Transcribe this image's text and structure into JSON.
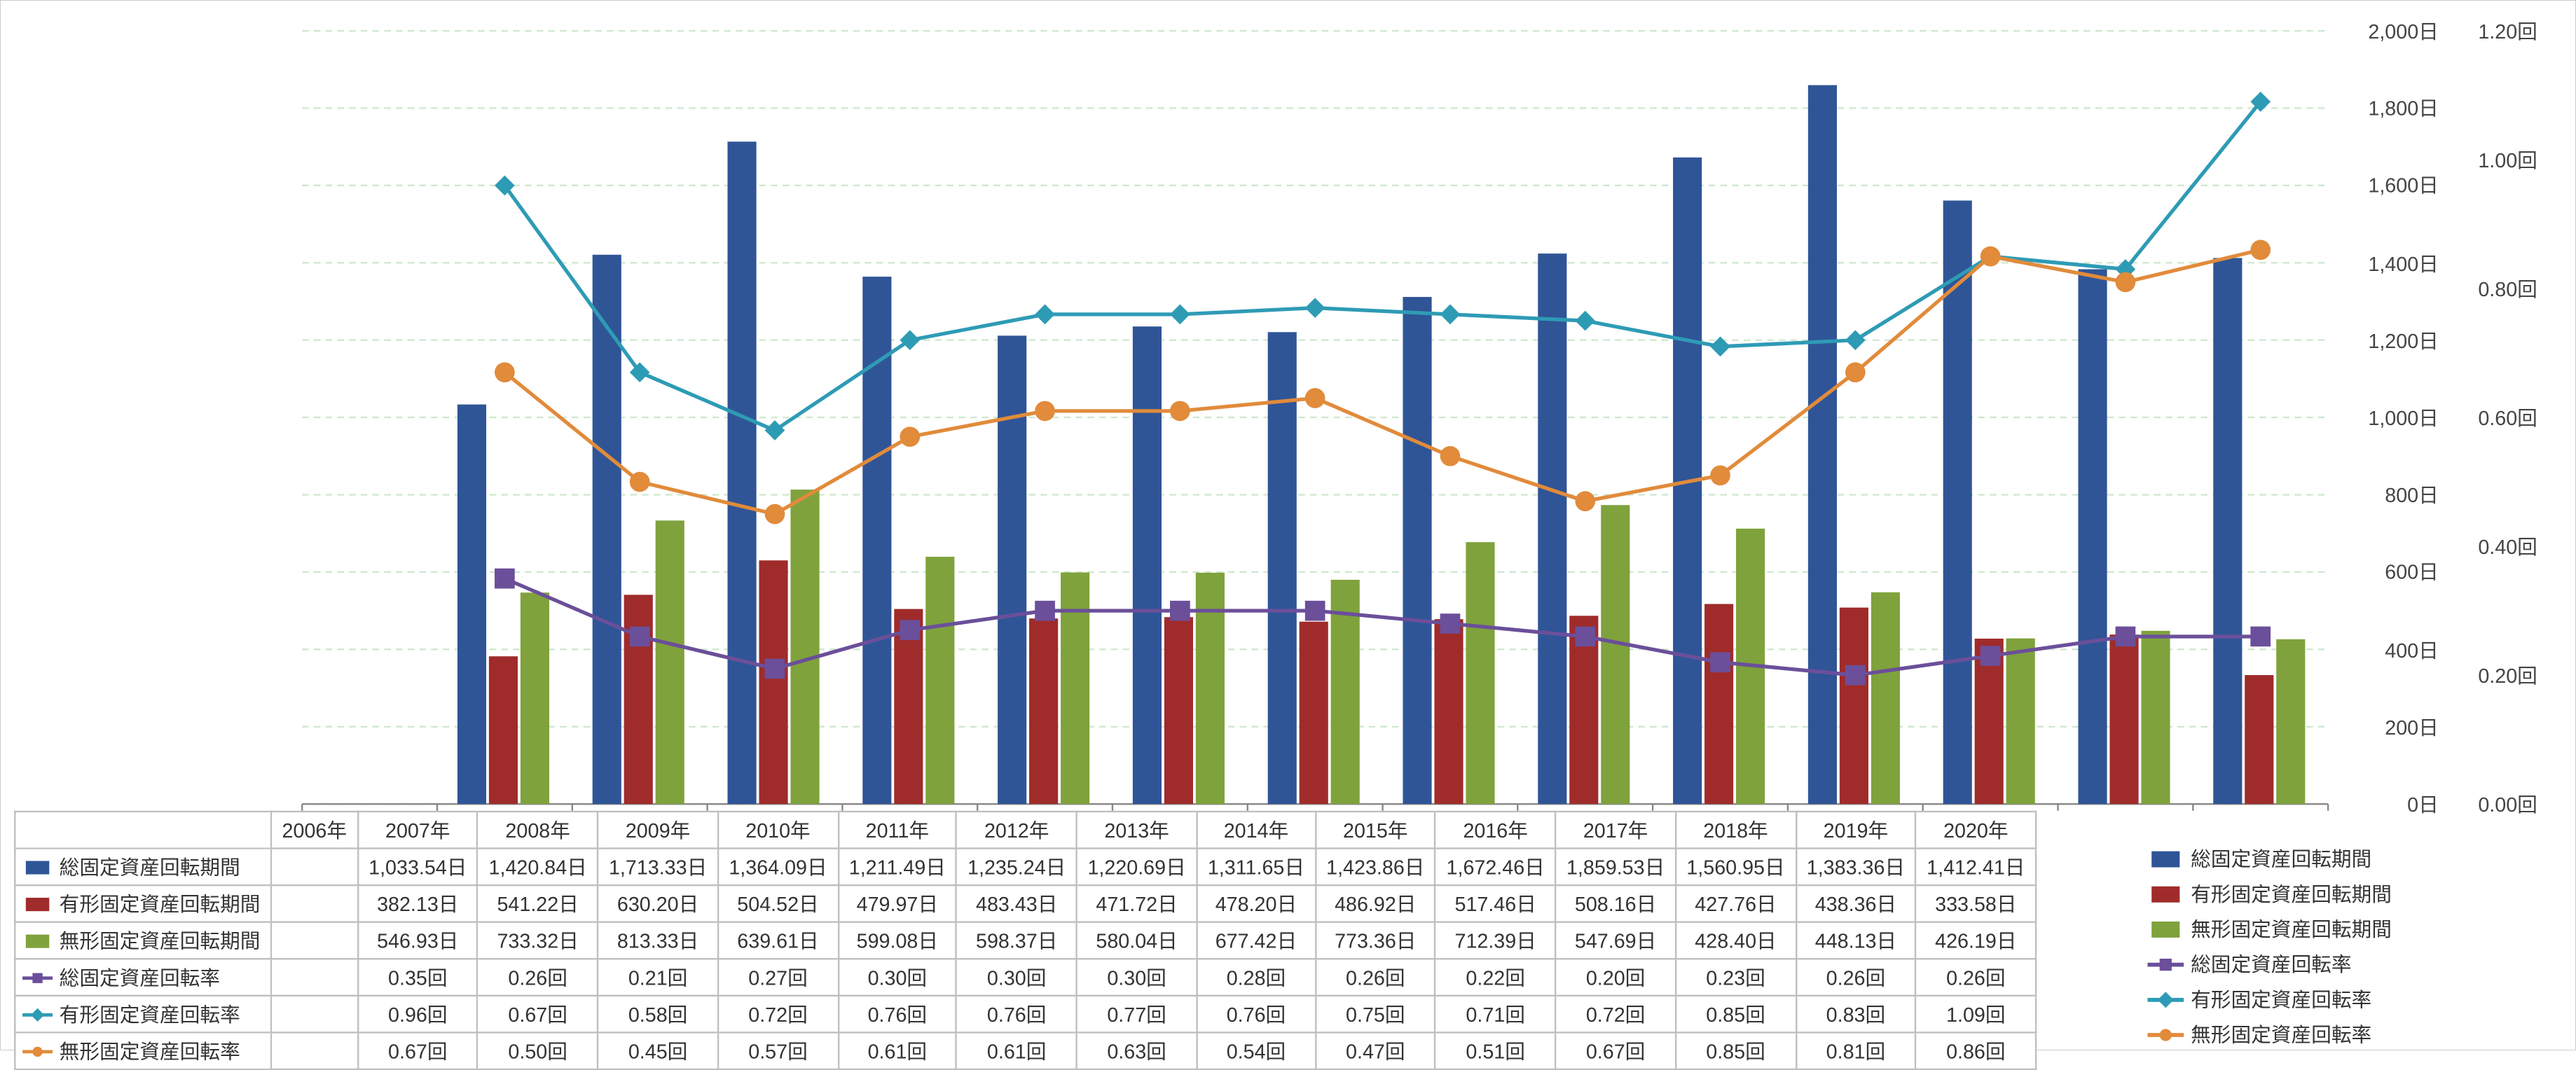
{
  "years": [
    "2006年",
    "2007年",
    "2008年",
    "2009年",
    "2010年",
    "2011年",
    "2012年",
    "2013年",
    "2014年",
    "2015年",
    "2016年",
    "2017年",
    "2018年",
    "2019年",
    "2020年"
  ],
  "series_bar": [
    {
      "key": "b1",
      "name": "総固定資産回転期間",
      "color": "#2f5597",
      "values": [
        null,
        1033.54,
        1420.84,
        1713.33,
        1364.09,
        1211.49,
        1235.24,
        1220.69,
        1311.65,
        1423.86,
        1672.46,
        1859.53,
        1560.95,
        1383.36,
        1412.41
      ],
      "unit": "日"
    },
    {
      "key": "b2",
      "name": "有形固定資産回転期間",
      "color": "#a02b2b",
      "values": [
        null,
        382.13,
        541.22,
        630.2,
        504.52,
        479.97,
        483.43,
        471.72,
        478.2,
        486.92,
        517.46,
        508.16,
        427.76,
        438.36,
        333.58
      ],
      "unit": "日"
    },
    {
      "key": "b3",
      "name": "無形固定資産回転期間",
      "color": "#7fa23c",
      "values": [
        null,
        546.93,
        733.32,
        813.33,
        639.61,
        599.08,
        598.37,
        580.04,
        677.42,
        773.36,
        712.39,
        547.69,
        428.4,
        448.13,
        426.19
      ],
      "unit": "日"
    }
  ],
  "series_line": [
    {
      "key": "l1",
      "name": "総固定資産回転率",
      "color": "#6b4f9a",
      "marker": "square",
      "values": [
        null,
        0.35,
        0.26,
        0.21,
        0.27,
        0.3,
        0.3,
        0.3,
        0.28,
        0.26,
        0.22,
        0.2,
        0.23,
        0.26,
        0.26
      ],
      "unit": "回"
    },
    {
      "key": "l2",
      "name": "有形固定資産回転率",
      "color": "#2e9bb5",
      "marker": "diamond",
      "values": [
        null,
        0.96,
        0.67,
        0.58,
        0.72,
        0.76,
        0.76,
        0.77,
        0.76,
        0.75,
        0.71,
        0.72,
        0.85,
        0.83,
        1.09
      ],
      "unit": "回"
    },
    {
      "key": "l3",
      "name": "無形固定資産回転率",
      "color": "#e18b3b",
      "marker": "circle",
      "values": [
        null,
        0.67,
        0.5,
        0.45,
        0.57,
        0.61,
        0.61,
        0.63,
        0.54,
        0.47,
        0.51,
        0.67,
        0.85,
        0.81,
        0.86
      ],
      "unit": "回"
    }
  ],
  "axis_left": {
    "min": 0,
    "max": 2000,
    "step": 200,
    "unit": "日",
    "grid_color": "#d0e8cf"
  },
  "axis_right": {
    "min": 0,
    "max": 1.2,
    "step": 0.2,
    "unit": "回"
  },
  "plot": {
    "bg": "#ffffff",
    "group_gap": 0.3,
    "bar_gap": 0.02,
    "line_width": 2.2,
    "marker_size": 6,
    "label_fontsize": 12
  },
  "legend_order": [
    "b1",
    "b2",
    "b3",
    "l1",
    "l2",
    "l3"
  ]
}
